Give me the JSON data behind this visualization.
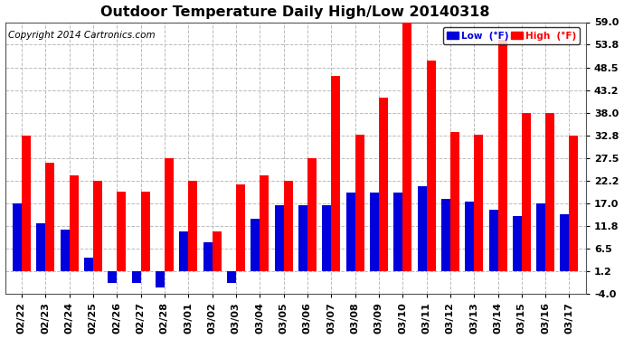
{
  "title": "Outdoor Temperature Daily High/Low 20140318",
  "copyright": "Copyright 2014 Cartronics.com",
  "dates": [
    "02/22",
    "02/23",
    "02/24",
    "02/25",
    "02/26",
    "02/27",
    "02/28",
    "03/01",
    "03/02",
    "03/03",
    "03/04",
    "03/05",
    "03/06",
    "03/07",
    "03/08",
    "03/09",
    "03/10",
    "03/11",
    "03/12",
    "03/13",
    "03/14",
    "03/15",
    "03/16",
    "03/17"
  ],
  "highs": [
    32.8,
    26.5,
    23.5,
    22.2,
    19.8,
    19.8,
    27.5,
    22.2,
    10.5,
    21.5,
    23.5,
    22.2,
    27.5,
    46.5,
    33.0,
    41.5,
    59.0,
    50.0,
    33.5,
    33.0,
    55.0,
    38.0,
    38.0,
    32.8
  ],
  "lows": [
    17.0,
    12.5,
    11.0,
    4.5,
    -1.5,
    -1.5,
    -2.5,
    10.5,
    8.0,
    -1.5,
    13.5,
    16.5,
    16.5,
    16.5,
    19.5,
    19.5,
    19.5,
    21.0,
    18.0,
    17.5,
    15.5,
    14.0,
    17.0,
    14.5
  ],
  "high_color": "#ff0000",
  "low_color": "#0000dd",
  "ylim": [
    -4.0,
    59.0
  ],
  "yticks": [
    -4.0,
    1.2,
    6.5,
    11.8,
    17.0,
    22.2,
    27.5,
    32.8,
    38.0,
    43.2,
    48.5,
    53.8,
    59.0
  ],
  "ytick_labels": [
    "-4.0",
    "1.2",
    "6.5",
    "11.8",
    "17.0",
    "22.2",
    "27.5",
    "32.8",
    "38.0",
    "43.2",
    "48.5",
    "53.8",
    "59.0"
  ],
  "background_color": "#ffffff",
  "grid_color": "#bbbbbb",
  "bar_width": 0.38,
  "title_fontsize": 11.5,
  "tick_fontsize": 8,
  "copyright_fontsize": 7.5,
  "legend_low_label": "Low  (°F)",
  "legend_high_label": "High  (°F)"
}
